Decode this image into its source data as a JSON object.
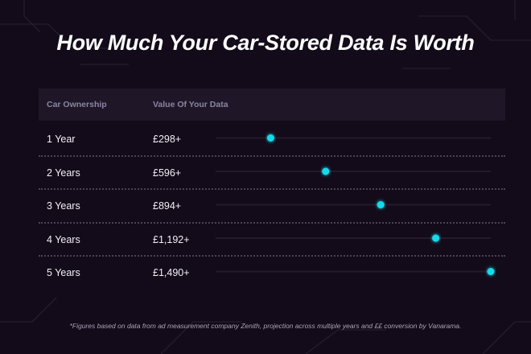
{
  "title": "How Much Your Car-Stored Data Is Worth",
  "chart_data": {
    "type": "bar",
    "orientation": "horizontal",
    "columns": [
      "Car Ownership",
      "Value Of Your Data"
    ],
    "categories": [
      "1 Year",
      "2 Years",
      "3 Years",
      "4 Years",
      "5 Years"
    ],
    "value_labels": [
      "£298+",
      "£596+",
      "£894+",
      "£1,192+",
      "£1,490+"
    ],
    "values": [
      298,
      596,
      894,
      1192,
      1490
    ],
    "xlim": [
      0,
      1490
    ],
    "grid": false,
    "bar_color": "#19d9ec",
    "track_color": "#241a2c"
  },
  "footnote": "*Figures based on data from ad measurement company Zenith, projection across multiple years and ££ conversion by Vanarama."
}
